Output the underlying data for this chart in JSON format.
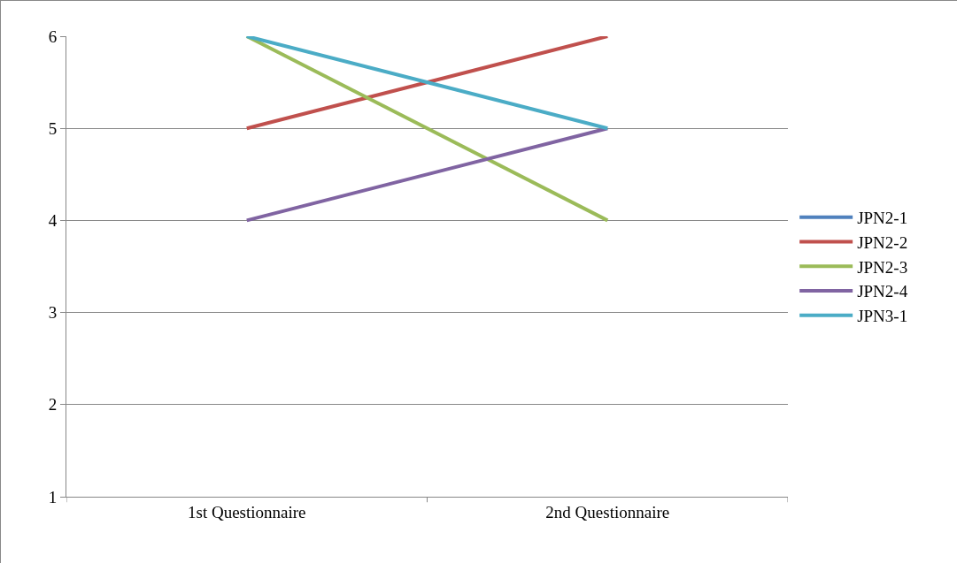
{
  "chart_data": {
    "type": "line",
    "categories": [
      "1st Questionnaire",
      "2nd Questionnaire"
    ],
    "series": [
      {
        "name": "JPN2-1",
        "color": "#4f81bd",
        "values": [
          null,
          null
        ]
      },
      {
        "name": "JPN2-2",
        "color": "#c0504d",
        "values": [
          5,
          6
        ]
      },
      {
        "name": "JPN2-3",
        "color": "#9bbb59",
        "values": [
          6,
          4
        ]
      },
      {
        "name": "JPN2-4",
        "color": "#8064a2",
        "values": [
          4,
          5
        ]
      },
      {
        "name": "JPN3-1",
        "color": "#4bacc6",
        "values": [
          6,
          5
        ]
      }
    ],
    "ylim": [
      1,
      6
    ],
    "yticks": [
      1,
      2,
      3,
      4,
      5,
      6
    ],
    "grid": "y",
    "legend": "right",
    "marker": "none",
    "line_style": "solid"
  }
}
